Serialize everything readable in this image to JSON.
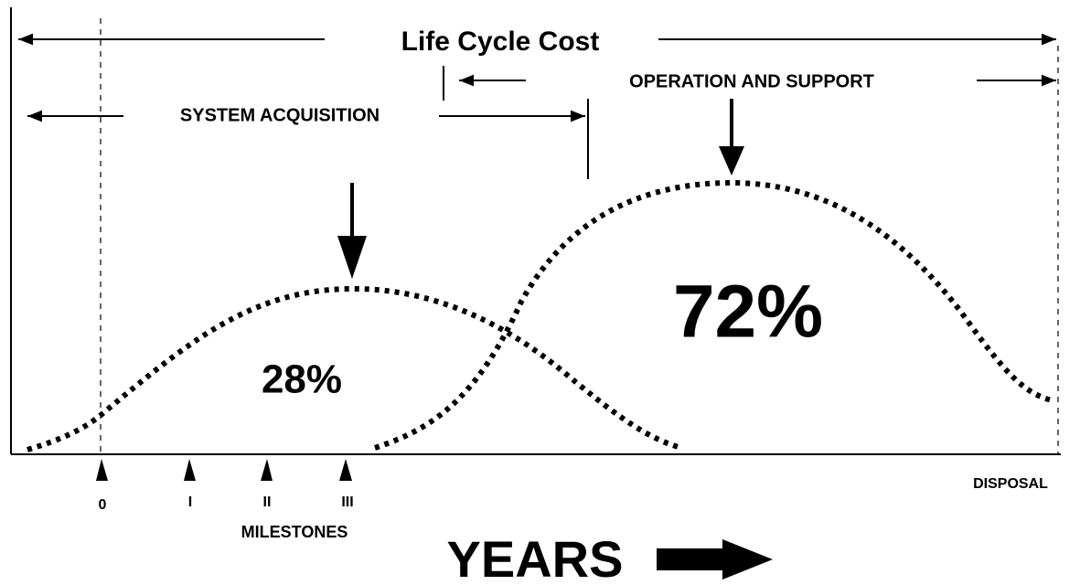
{
  "title": "Life Cycle Cost",
  "phases": {
    "operation": "OPERATION AND SUPPORT",
    "acquisition": "SYSTEM ACQUISITION"
  },
  "curves": {
    "acquisition_share": "28%",
    "operation_share": "72%"
  },
  "milestones": {
    "label": "MILESTONES",
    "items": [
      "0",
      "I",
      "II",
      "III"
    ]
  },
  "disposal": "DISPOSAL",
  "x_axis": "YEARS"
}
